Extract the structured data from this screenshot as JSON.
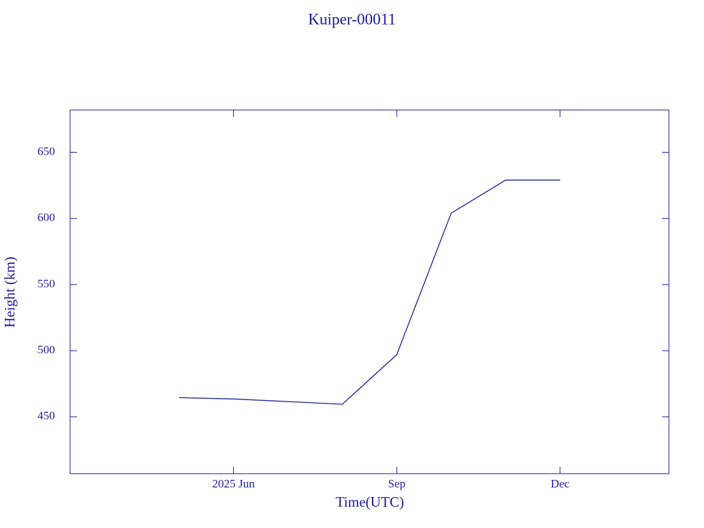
{
  "chart_data": {
    "type": "line",
    "title": "Kuiper-00011",
    "x_label": "Time(UTC)",
    "y_label": "Height (km)",
    "x": [
      "2025-05",
      "2025-06",
      "2025-07",
      "2025-08",
      "2025-09",
      "2025-10",
      "2025-11",
      "2025-12"
    ],
    "series": [
      {
        "name": "Kuiper-00011",
        "color": "#1a1a9a",
        "values": [
          464.5,
          463.5,
          461.5,
          459.5,
          497,
          604,
          629,
          629
        ]
      }
    ],
    "xlim": [
      "2025-03",
      "2026-02"
    ],
    "xticks": [
      {
        "value": "2025-06",
        "label": "2025 Jun"
      },
      {
        "value": "2025-09",
        "label": "Sep"
      },
      {
        "value": "2025-12",
        "label": "Dec"
      }
    ],
    "ylim": [
      407,
      682
    ],
    "yticks": [
      450,
      500,
      550,
      600,
      650
    ]
  }
}
